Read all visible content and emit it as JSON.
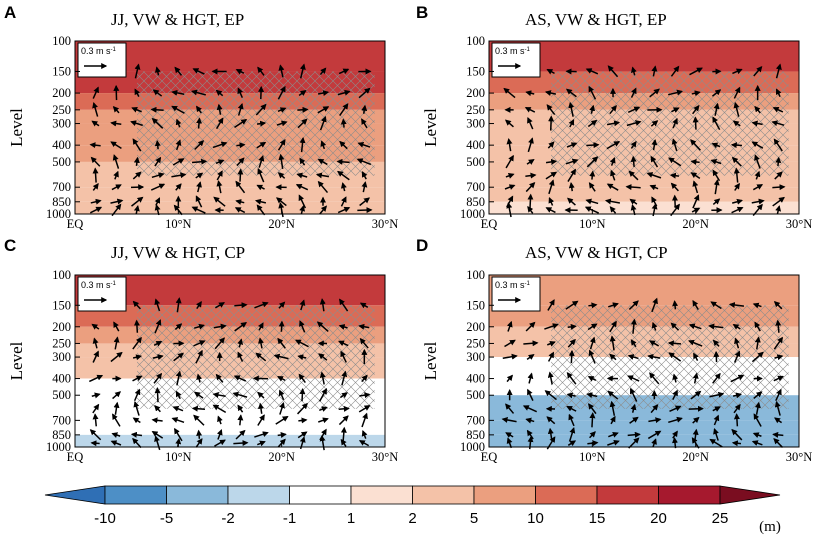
{
  "chart_data": [
    {
      "letter": "A",
      "title": "JJ, VW & HGT, EP",
      "type": "heatmap",
      "ylabel": "Level",
      "x_ticks": [
        "EQ",
        "10°N",
        "20°N",
        "30°N"
      ],
      "x_values": [
        0,
        10,
        20,
        30
      ],
      "xlim": [
        0,
        30
      ],
      "y_ticks": [
        "100",
        "150",
        "200",
        "250",
        "300",
        "400",
        "500",
        "700",
        "850",
        "1000"
      ],
      "y_values": [
        100,
        150,
        200,
        250,
        300,
        400,
        500,
        700,
        850,
        1000
      ],
      "ylim": [
        1000,
        100
      ],
      "reference_vector": "0.3 m s",
      "reference_exp": "-1",
      "band_levels_hpa": [
        100,
        150,
        200,
        250,
        300,
        400,
        500,
        700,
        850,
        1000
      ],
      "band_values_m": [
        18,
        16,
        12,
        8,
        6,
        5,
        4,
        3,
        2
      ],
      "hatched": true
    },
    {
      "letter": "B",
      "title": "AS, VW & HGT, EP",
      "type": "heatmap",
      "ylabel": "Level",
      "x_ticks": [
        "EQ",
        "10°N",
        "20°N",
        "30°N"
      ],
      "x_values": [
        0,
        10,
        20,
        30
      ],
      "xlim": [
        0,
        30
      ],
      "y_ticks": [
        "100",
        "150",
        "200",
        "250",
        "300",
        "400",
        "500",
        "700",
        "850",
        "1000"
      ],
      "y_values": [
        100,
        150,
        200,
        250,
        300,
        400,
        500,
        700,
        850,
        1000
      ],
      "ylim": [
        1000,
        100
      ],
      "reference_vector": "0.3 m s",
      "reference_exp": "-1",
      "band_levels_hpa": [
        100,
        150,
        200,
        250,
        300,
        400,
        500,
        700,
        850,
        1000
      ],
      "band_values_m": [
        16,
        10,
        6,
        4,
        3,
        3,
        2,
        2,
        1.5
      ],
      "hatched": true
    },
    {
      "letter": "C",
      "title": "JJ, VW & HGT, CP",
      "type": "heatmap",
      "ylabel": "Level",
      "x_ticks": [
        "EQ",
        "10°N",
        "20°N",
        "30°N"
      ],
      "x_values": [
        0,
        10,
        20,
        30
      ],
      "xlim": [
        0,
        30
      ],
      "y_ticks": [
        "100",
        "150",
        "200",
        "250",
        "300",
        "400",
        "500",
        "700",
        "850",
        "1000"
      ],
      "y_values": [
        100,
        150,
        200,
        250,
        300,
        400,
        500,
        700,
        850,
        1000
      ],
      "ylim": [
        1000,
        100
      ],
      "reference_vector": "0.3 m s",
      "reference_exp": "-1",
      "band_levels_hpa": [
        100,
        150,
        200,
        250,
        300,
        400,
        500,
        700,
        850,
        1000
      ],
      "band_values_m": [
        16,
        10,
        6,
        4,
        2,
        0,
        0,
        -1,
        -2
      ],
      "hatched": true
    },
    {
      "letter": "D",
      "title": "AS, VW & HGT, CP",
      "type": "heatmap",
      "ylabel": "Level",
      "x_ticks": [
        "EQ",
        "10°N",
        "20°N",
        "30°N"
      ],
      "x_values": [
        0,
        10,
        20,
        30
      ],
      "xlim": [
        0,
        30
      ],
      "y_ticks": [
        "100",
        "150",
        "200",
        "250",
        "300",
        "400",
        "500",
        "700",
        "850",
        "1000"
      ],
      "y_values": [
        100,
        150,
        200,
        250,
        300,
        400,
        500,
        700,
        850,
        1000
      ],
      "ylim": [
        1000,
        100
      ],
      "reference_vector": "0.3 m s",
      "reference_exp": "-1",
      "band_levels_hpa": [
        100,
        150,
        200,
        250,
        300,
        400,
        500,
        700,
        850,
        1000
      ],
      "band_values_m": [
        6,
        5,
        4,
        2,
        0,
        -1,
        -3,
        -5,
        -5
      ],
      "hatched": true
    }
  ],
  "colorbar": {
    "labels": [
      "-10",
      "-5",
      "-2",
      "-1",
      "1",
      "2",
      "5",
      "10",
      "15",
      "20",
      "25"
    ],
    "unit": "(m)",
    "colors": [
      "#2f6fb5",
      "#4d8fc6",
      "#8ab9da",
      "#bcd7ea",
      "#ffffff",
      "#fbe0d2",
      "#f4c2a8",
      "#eb9f7f",
      "#db6b56",
      "#c33a3c",
      "#a6192e",
      "#7a0d20"
    ]
  }
}
